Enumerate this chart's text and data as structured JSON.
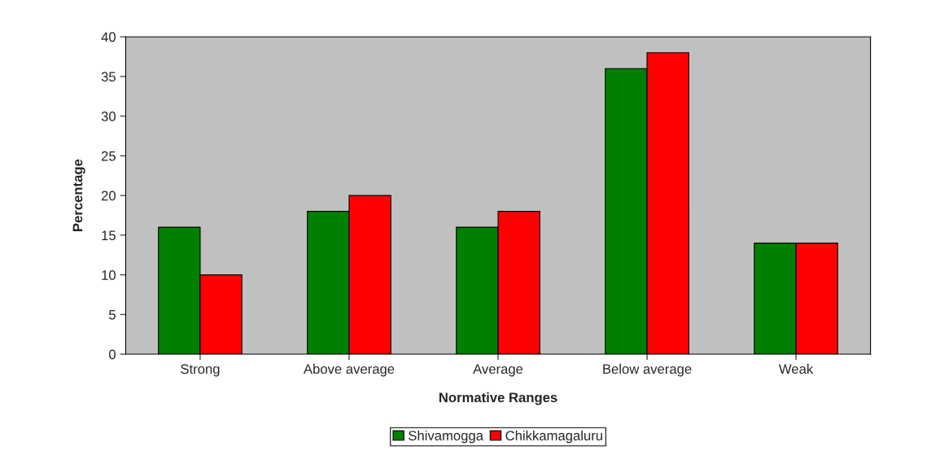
{
  "chart_data": {
    "type": "bar",
    "xlabel": "Normative Ranges",
    "ylabel": "Percentage",
    "categories": [
      "Strong",
      "Above average",
      "Average",
      "Below average",
      "Weak"
    ],
    "series": [
      {
        "name": "Shivamogga",
        "color": "#008000",
        "values": [
          16,
          18,
          16,
          36,
          14
        ]
      },
      {
        "name": "Chikkamagaluru",
        "color": "#ff0000",
        "values": [
          10,
          20,
          18,
          38,
          14
        ]
      }
    ],
    "ylim": [
      0,
      40
    ],
    "yticks": [
      0,
      5,
      10,
      15,
      20,
      25,
      30,
      35,
      40
    ],
    "grid": false,
    "legend": "bottom"
  }
}
